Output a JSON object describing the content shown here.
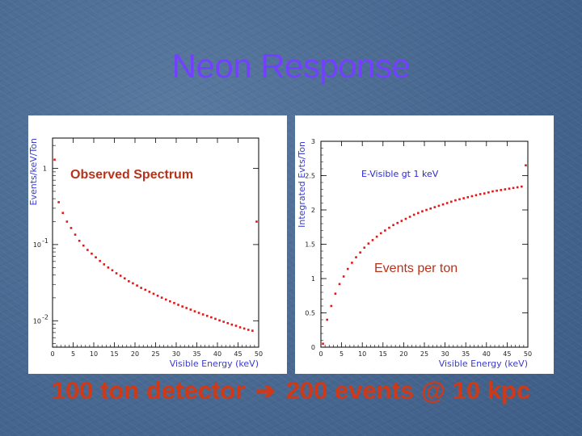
{
  "slide": {
    "title": "Neon Response",
    "footer": {
      "left": "100 ton detector",
      "arrow": "➔",
      "right": "200 events @ 10 kpc"
    }
  },
  "chart_data": [
    {
      "type": "scatter",
      "title": "Observed Spectrum",
      "xlabel": "Visible Energy (keV)",
      "ylabel": "Events/keV/Ton",
      "log_y": true,
      "xlim": [
        0,
        50
      ],
      "ylim": [
        0.0045,
        2.5
      ],
      "x_ticks": [
        "0",
        "5",
        "10",
        "15",
        "20",
        "25",
        "30",
        "35",
        "40",
        "45",
        "50"
      ],
      "y_ticks": [
        {
          "value": 1,
          "label": "1"
        },
        {
          "value": 0.1,
          "label": "10^-1"
        },
        {
          "value": 0.01,
          "label": "10^-2"
        }
      ],
      "marker_color": "#e01818",
      "series": [
        {
          "x": [
            0.5,
            1.5,
            2.5,
            3.5,
            4.5,
            5.5,
            6.5,
            7.5,
            8.5,
            9.5,
            10.5,
            11.5,
            12.5,
            13.5,
            14.5,
            15.5,
            16.5,
            17.5,
            18.5,
            19.5,
            20.5,
            21.5,
            22.5,
            23.5,
            24.5,
            25.5,
            26.5,
            27.5,
            28.5,
            29.5,
            30.5,
            31.5,
            32.5,
            33.5,
            34.5,
            35.5,
            36.5,
            37.5,
            38.5,
            39.5,
            40.5,
            41.5,
            42.5,
            43.5,
            44.5,
            45.5,
            46.5,
            47.5,
            48.5,
            49.5
          ],
          "y": [
            1.3,
            0.36,
            0.26,
            0.2,
            0.165,
            0.135,
            0.112,
            0.097,
            0.085,
            0.076,
            0.068,
            0.061,
            0.055,
            0.05,
            0.046,
            0.042,
            0.039,
            0.036,
            0.033,
            0.031,
            0.029,
            0.027,
            0.0255,
            0.024,
            0.0226,
            0.0213,
            0.0201,
            0.019,
            0.018,
            0.0171,
            0.0162,
            0.0154,
            0.0147,
            0.014,
            0.0133,
            0.0127,
            0.0121,
            0.0116,
            0.0111,
            0.0106,
            0.0101,
            0.0097,
            0.0093,
            0.0089,
            0.0086,
            0.0082,
            0.0079,
            0.0076,
            0.0074,
            0.2
          ]
        }
      ]
    },
    {
      "type": "scatter",
      "title": "Events per ton",
      "annotation": "E-Visible gt 1 keV",
      "xlabel": "Visible Energy (keV)",
      "ylabel": "Integrated Evts/Ton",
      "xlim": [
        0,
        50
      ],
      "ylim": [
        0,
        3
      ],
      "x_ticks": [
        "0",
        "5",
        "10",
        "15",
        "20",
        "25",
        "30",
        "35",
        "40",
        "45",
        "50"
      ],
      "y_ticks": [
        {
          "value": 0,
          "label": "0"
        },
        {
          "value": 0.5,
          "label": "0.5"
        },
        {
          "value": 1,
          "label": "1"
        },
        {
          "value": 1.5,
          "label": "1.5"
        },
        {
          "value": 2,
          "label": "2"
        },
        {
          "value": 2.5,
          "label": "2.5"
        },
        {
          "value": 3,
          "label": "3"
        }
      ],
      "marker_color": "#e01818",
      "series": [
        {
          "x": [
            0.5,
            1.5,
            2.5,
            3.5,
            4.5,
            5.5,
            6.5,
            7.5,
            8.5,
            9.5,
            10.5,
            11.5,
            12.5,
            13.5,
            14.5,
            15.5,
            16.5,
            17.5,
            18.5,
            19.5,
            20.5,
            21.5,
            22.5,
            23.5,
            24.5,
            25.5,
            26.5,
            27.5,
            28.5,
            29.5,
            30.5,
            31.5,
            32.5,
            33.5,
            34.5,
            35.5,
            36.5,
            37.5,
            38.5,
            39.5,
            40.5,
            41.5,
            42.5,
            43.5,
            44.5,
            45.5,
            46.5,
            47.5,
            48.5,
            49.5
          ],
          "y": [
            0.05,
            0.4,
            0.6,
            0.78,
            0.92,
            1.03,
            1.14,
            1.23,
            1.31,
            1.38,
            1.45,
            1.51,
            1.56,
            1.61,
            1.66,
            1.7,
            1.74,
            1.78,
            1.81,
            1.84,
            1.87,
            1.9,
            1.93,
            1.955,
            1.98,
            2.0,
            2.02,
            2.04,
            2.06,
            2.08,
            2.1,
            2.12,
            2.14,
            2.155,
            2.17,
            2.185,
            2.2,
            2.215,
            2.23,
            2.24,
            2.255,
            2.27,
            2.28,
            2.29,
            2.3,
            2.31,
            2.32,
            2.33,
            2.34,
            2.65
          ]
        }
      ]
    }
  ]
}
